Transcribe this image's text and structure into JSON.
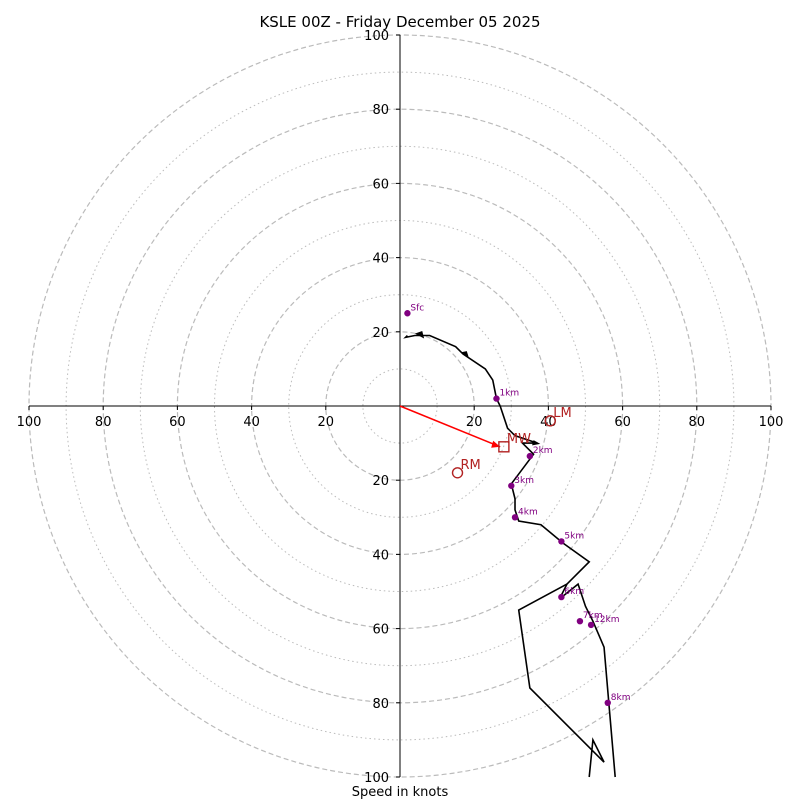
{
  "chart_data": {
    "type": "hodograph",
    "title": "KSLE 00Z - Friday December 05 2025",
    "xlabel": "Speed in knots",
    "xlim": [
      -100,
      100
    ],
    "ylim": [
      -100,
      100
    ],
    "major_rings": [
      20,
      40,
      60,
      80,
      100
    ],
    "minor_rings": [
      10,
      30,
      50,
      70,
      90
    ],
    "x_tick_labels": [
      "100",
      "80",
      "60",
      "40",
      "20",
      "20",
      "40",
      "60",
      "80",
      "100"
    ],
    "x_tick_values": [
      -100,
      -80,
      -60,
      -40,
      -20,
      20,
      40,
      60,
      80,
      100
    ],
    "y_tick_labels": [
      "100",
      "80",
      "60",
      "40",
      "20",
      "20",
      "40",
      "60",
      "80",
      "100"
    ],
    "y_tick_values": [
      100,
      80,
      60,
      40,
      20,
      -20,
      -40,
      -60,
      -80,
      -100
    ],
    "wind_profile": {
      "u": [
        2,
        1.5,
        1.5,
        4,
        8,
        15,
        18,
        23,
        25,
        26,
        27,
        29,
        31,
        32,
        36,
        33,
        30,
        31,
        31,
        32,
        38,
        44,
        50,
        45,
        43,
        48,
        50,
        52,
        55,
        58,
        56,
        52,
        51
      ],
      "v": [
        25,
        22,
        19,
        19,
        19,
        16,
        13,
        10,
        7,
        2,
        0,
        -6,
        -8,
        -10,
        -12,
        -17,
        -21,
        -25,
        -28,
        -31,
        -32,
        -37,
        -42,
        -48,
        -52,
        -48,
        -54,
        -58,
        -65,
        -100,
        -93,
        -100,
        -100
      ]
    },
    "wind_line_path": [
      [
        2,
        19
      ],
      [
        1.5,
        18.5
      ],
      [
        4,
        19
      ],
      [
        8,
        19
      ],
      [
        15,
        16
      ],
      [
        17,
        14
      ],
      [
        23,
        10
      ],
      [
        25,
        7
      ],
      [
        26,
        2
      ],
      [
        27,
        0
      ],
      [
        29,
        -6
      ],
      [
        31,
        -8
      ],
      [
        37,
        -10
      ],
      [
        33,
        -10
      ],
      [
        36,
        -13
      ],
      [
        33,
        -17
      ],
      [
        30,
        -21
      ],
      [
        31,
        -25
      ],
      [
        31,
        -28
      ],
      [
        32,
        -31
      ],
      [
        38,
        -32
      ],
      [
        44,
        -37
      ],
      [
        51,
        -42
      ],
      [
        45,
        -48
      ],
      [
        43,
        -52
      ],
      [
        48,
        -48
      ],
      [
        50,
        -54
      ],
      [
        52,
        -58
      ],
      [
        55,
        -65
      ],
      [
        58,
        -100
      ]
    ],
    "wind_line_path_2": [
      [
        45,
        -48
      ],
      [
        32,
        -55
      ],
      [
        35,
        -76
      ],
      [
        55,
        -96
      ],
      [
        52,
        -90
      ],
      [
        51,
        -100
      ]
    ],
    "height_markers": [
      {
        "label": "Sfc",
        "u": 2,
        "v": 25
      },
      {
        "label": "1km",
        "u": 26,
        "v": 2
      },
      {
        "label": "2km",
        "u": 35,
        "v": -13.5
      },
      {
        "label": "3km",
        "u": 30,
        "v": -21.5
      },
      {
        "label": "4km",
        "u": 31,
        "v": -30
      },
      {
        "label": "5km",
        "u": 43.5,
        "v": -36.5
      },
      {
        "label": "6km",
        "u": 43.5,
        "v": -51.5
      },
      {
        "label": "7km",
        "u": 48.5,
        "v": -58
      },
      {
        "label": "12km",
        "u": 51.5,
        "v": -59
      },
      {
        "label": "8km",
        "u": 56,
        "v": -80
      }
    ],
    "storm_motion": [
      {
        "label": "LM",
        "u": 40.5,
        "v": -4,
        "symbol": "circle"
      },
      {
        "label": "MW",
        "u": 28,
        "v": -11,
        "symbol": "square"
      },
      {
        "label": "RM",
        "u": 15.5,
        "v": -18,
        "symbol": "circle"
      }
    ],
    "shear_vector": {
      "u0": 0,
      "v0": 0,
      "u1": 27,
      "v1": -11
    },
    "colors": {
      "hodo_line": "#000000",
      "marker": "#800080",
      "storm_motion": "#b22222",
      "shear_vector": "#ff0000",
      "grid": "#bbbbbb"
    }
  }
}
